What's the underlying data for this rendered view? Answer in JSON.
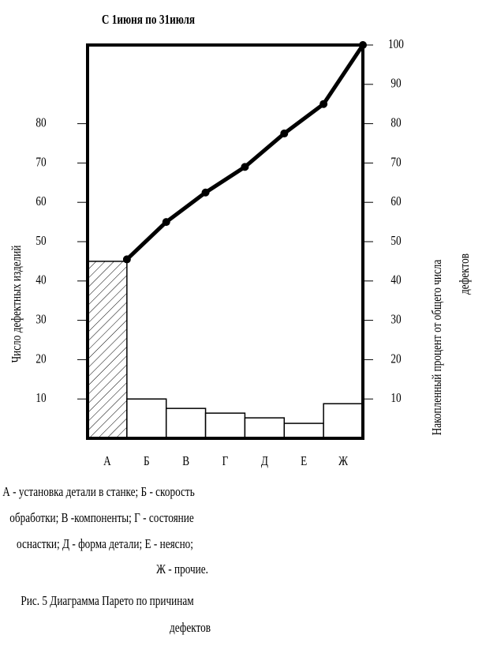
{
  "chart_data": {
    "type": "pareto",
    "title": "С 1июня по 31июля",
    "y_label": "Число дефектных изделий",
    "y2_label": [
      "Накопленный процент от общего числа",
      "дефектов"
    ],
    "categories": [
      "А",
      "Б",
      "В",
      "Г",
      "Д",
      "Е",
      "Ж"
    ],
    "series": [
      {
        "type": "bar",
        "color": "#ffffff",
        "values": [
          45,
          10,
          7.6,
          6.4,
          5.2,
          3.8,
          8.8
        ]
      },
      {
        "type": "line",
        "axis": "y2",
        "color": "#000000",
        "values": [
          45.5,
          55,
          62.5,
          69,
          77.5,
          85,
          100
        ]
      }
    ],
    "ylim": [
      0,
      100
    ],
    "yticks": [
      10,
      20,
      30,
      40,
      50,
      60,
      70,
      80
    ],
    "y2lim": [
      0,
      100
    ],
    "y2ticks": [
      10,
      20,
      30,
      40,
      50,
      60,
      70,
      80,
      90,
      100
    ],
    "notes": [
      "А - установка детали в станке; Б - скорость",
      "обработки; В -компоненты; Г - состояние",
      "оснастки; Д - форма детали; Е - неясно;",
      "Ж - прочие."
    ],
    "caption": [
      "Рис. 5 Диаграмма Парето по причинам",
      "дефектов"
    ]
  }
}
